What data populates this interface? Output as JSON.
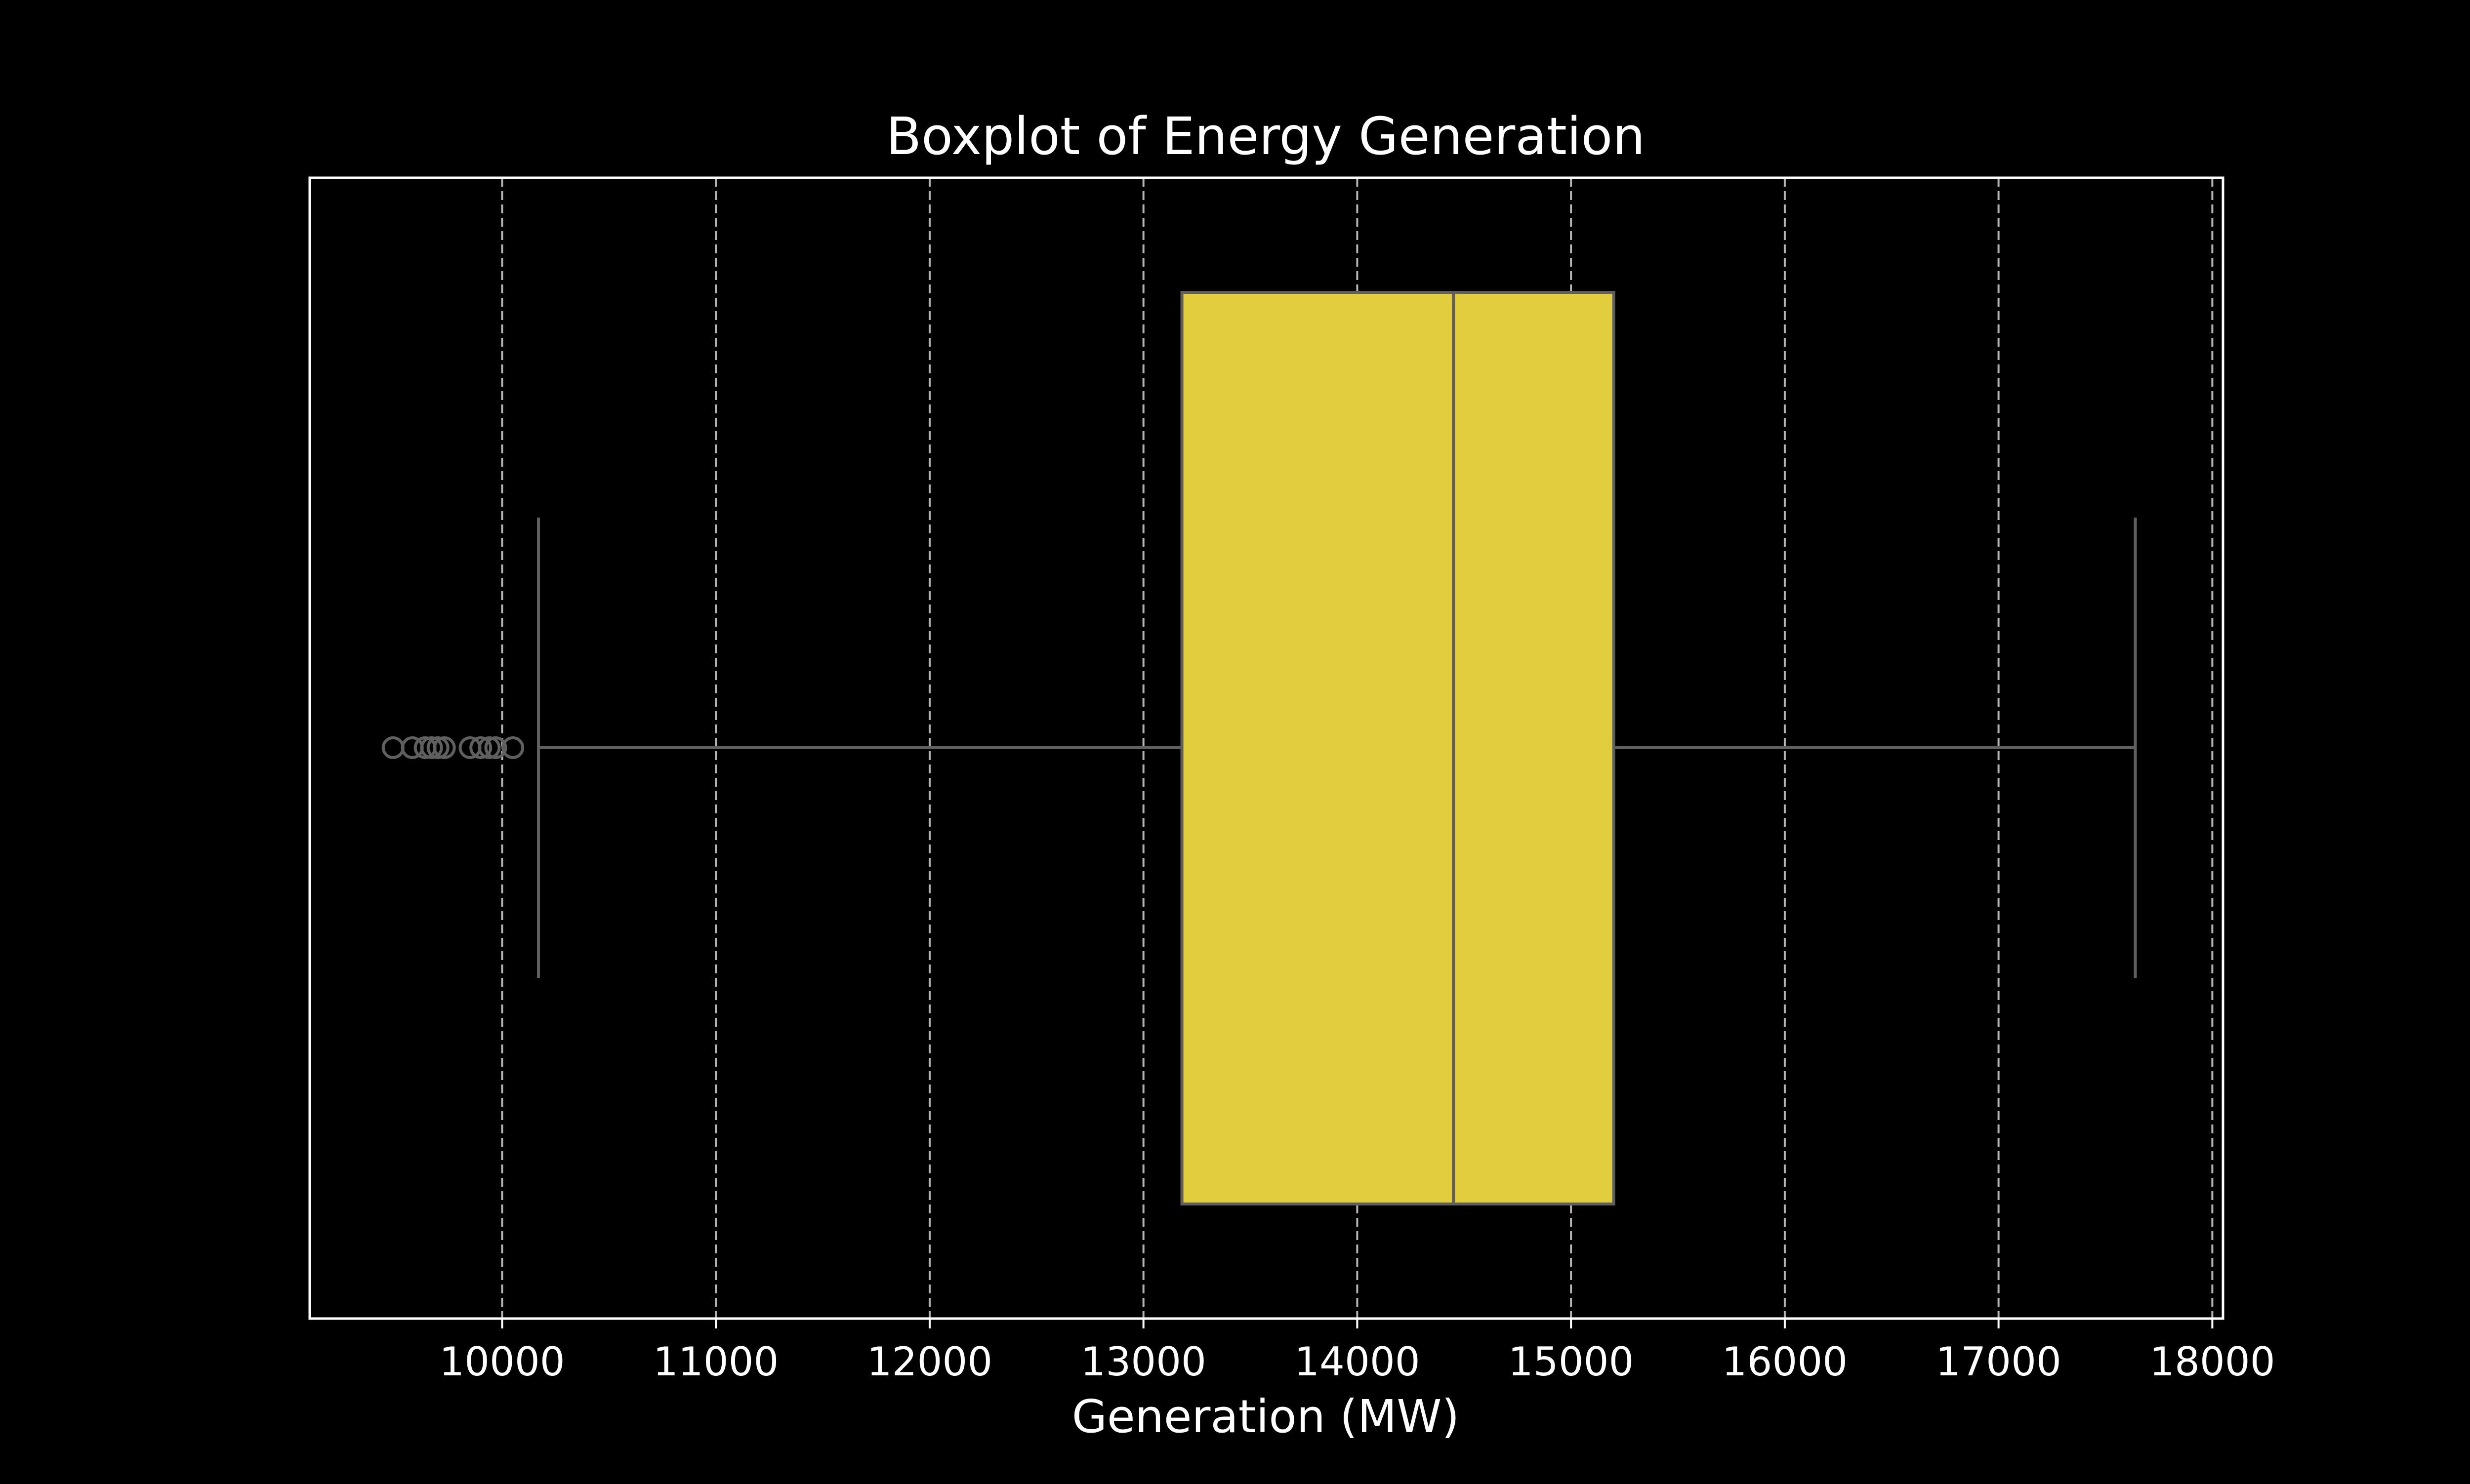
{
  "colors": {
    "background": "#000000",
    "foreground": "#ffffff",
    "box_fill": "#e2cd3e",
    "box_edge": "#5f5f5f",
    "grid": "#b4b4b4"
  },
  "chart_data": {
    "type": "boxplot",
    "orientation": "horizontal",
    "title": "Boxplot of Energy Generation",
    "xlabel": "Generation (MW)",
    "ylabel": "",
    "xlim": [
      9100,
      18050
    ],
    "xticks": [
      10000,
      11000,
      12000,
      13000,
      14000,
      15000,
      16000,
      17000,
      18000
    ],
    "xtick_labels": [
      "10000",
      "11000",
      "12000",
      "13000",
      "14000",
      "15000",
      "16000",
      "17000",
      "18000"
    ],
    "grid": {
      "axis": "x",
      "style": "dashed"
    },
    "legend": "none",
    "box": {
      "whisker_low": 10170,
      "q1": 13180,
      "median": 14450,
      "q3": 15200,
      "whisker_high": 17640
    },
    "outliers": [
      9490,
      9580,
      9640,
      9670,
      9700,
      9730,
      9850,
      9900,
      9940,
      9970,
      10050
    ]
  }
}
